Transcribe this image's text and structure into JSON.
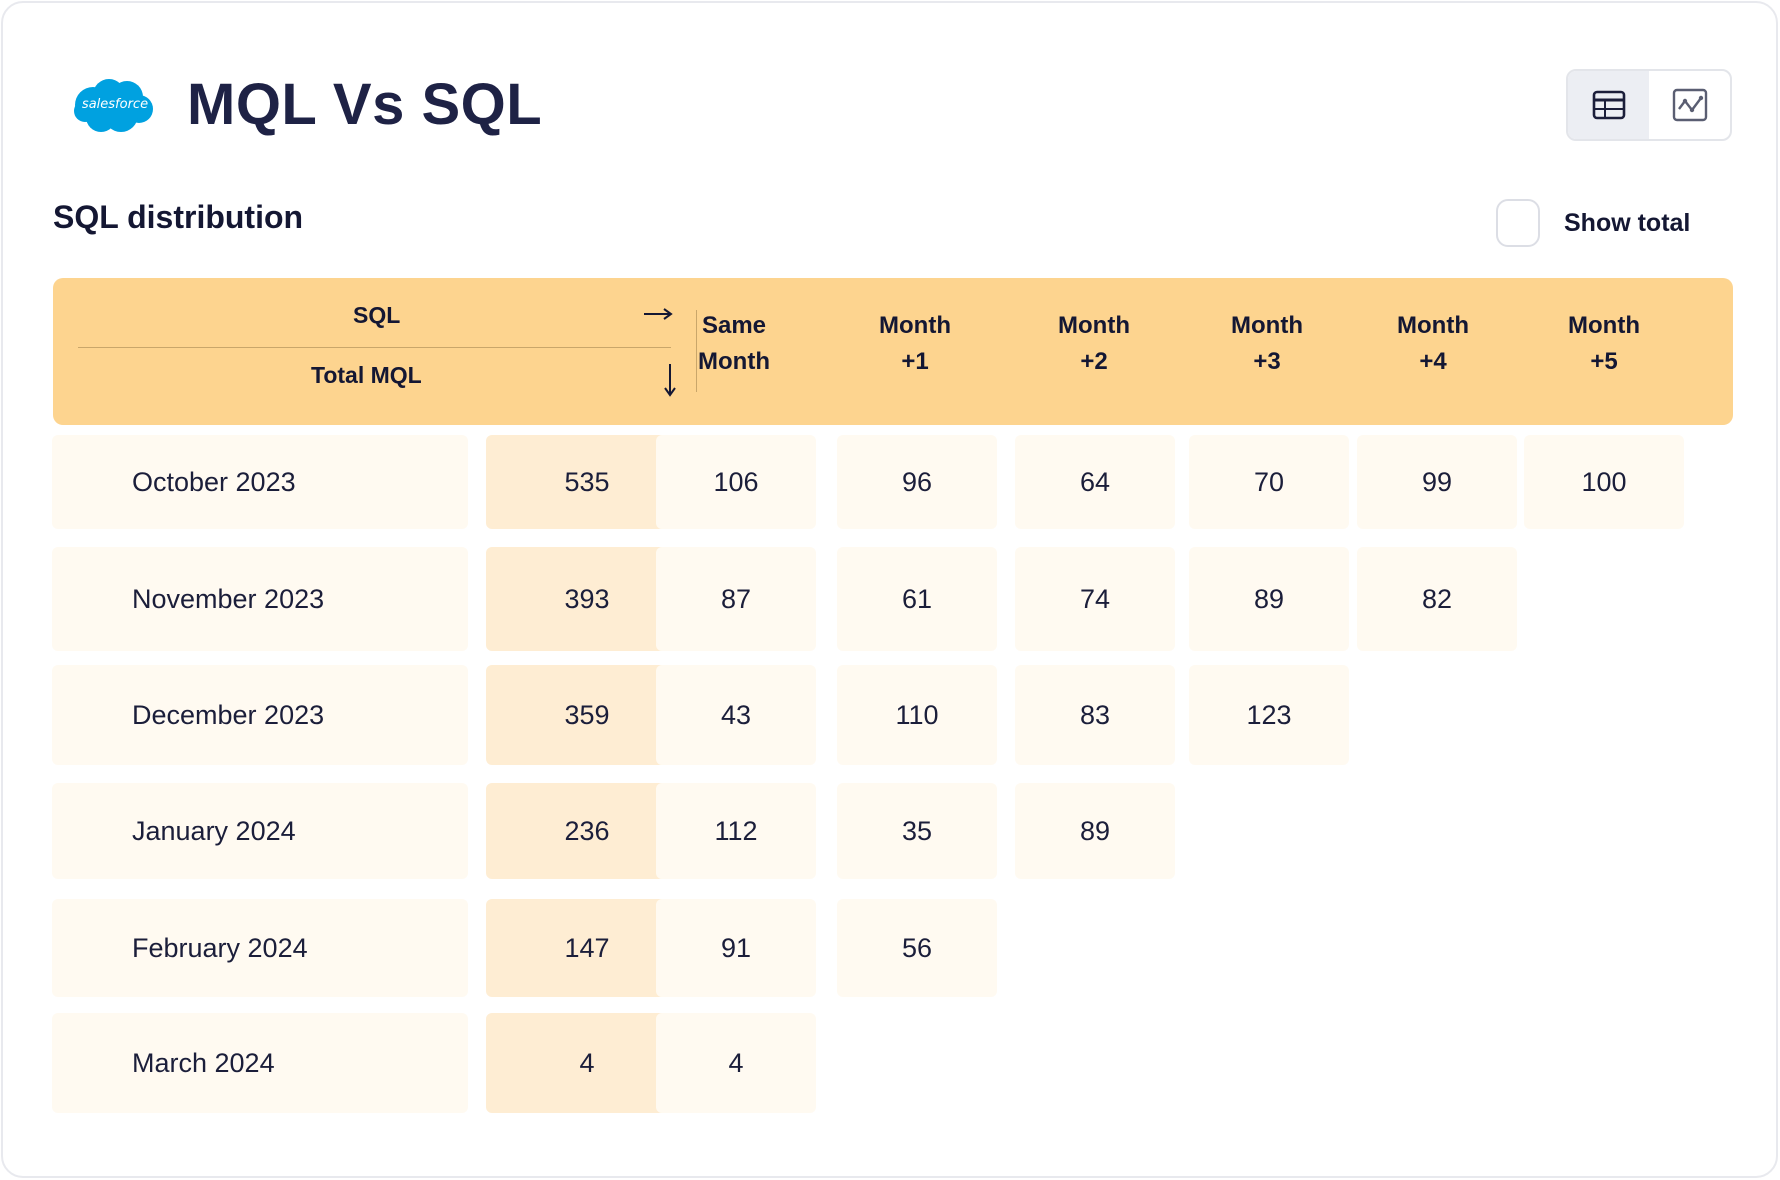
{
  "header": {
    "logo_text": "salesforce",
    "title": "MQL Vs SQL",
    "view_toggle": {
      "active": "table",
      "options": [
        "table-icon",
        "line-chart-icon"
      ]
    }
  },
  "section": {
    "title": "SQL distribution",
    "show_total": {
      "label": "Show total",
      "checked": false
    }
  },
  "table": {
    "corner_top_label": "SQL",
    "corner_bottom_label": "Total MQL",
    "column_headers": [
      [
        "Same",
        "Month"
      ],
      [
        "Month",
        "+1"
      ],
      [
        "Month",
        "+2"
      ],
      [
        "Month",
        "+3"
      ],
      [
        "Month",
        "+4"
      ],
      [
        "Month",
        "+5"
      ]
    ],
    "rows": [
      {
        "label": "October 2023",
        "total": "535",
        "values": [
          "106",
          "96",
          "64",
          "70",
          "99",
          "100"
        ]
      },
      {
        "label": "November 2023",
        "total": "393",
        "values": [
          "87",
          "61",
          "74",
          "89",
          "82"
        ]
      },
      {
        "label": "December 2023",
        "total": "359",
        "values": [
          "43",
          "110",
          "83",
          "123"
        ]
      },
      {
        "label": "January 2024",
        "total": "236",
        "values": [
          "112",
          "35",
          "89"
        ]
      },
      {
        "label": "February 2024",
        "total": "147",
        "values": [
          "91",
          "56"
        ]
      },
      {
        "label": "March 2024",
        "total": "4",
        "values": [
          "4"
        ]
      }
    ]
  },
  "colors": {
    "header_band": "#fdd48f",
    "total_cell": "#feedd3",
    "label_cell": "#fffaf1",
    "title_text": "#1e2245",
    "salesforce_blue": "#00a1e0"
  }
}
